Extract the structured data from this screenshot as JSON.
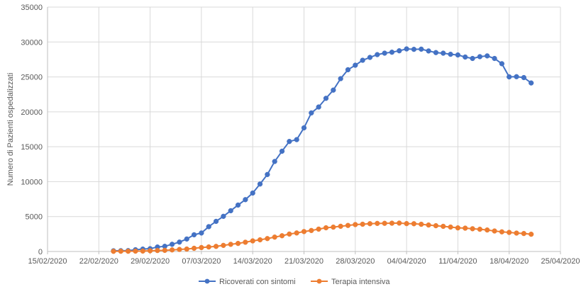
{
  "chart_data": {
    "type": "line",
    "title": "",
    "xlabel": "",
    "ylabel": "Numero di Pazienti ospedalizzati",
    "ylim": [
      0,
      35000
    ],
    "yticks": [
      0,
      5000,
      10000,
      15000,
      20000,
      25000,
      30000,
      35000
    ],
    "ytick_labels": [
      "0",
      "5000",
      "10000",
      "15000",
      "20000",
      "25000",
      "30000",
      "35000"
    ],
    "xlim": [
      "2020-02-15",
      "2020-04-25"
    ],
    "xticks": [
      "2020-02-15",
      "2020-02-22",
      "2020-02-29",
      "2020-03-07",
      "2020-03-14",
      "2020-03-21",
      "2020-03-28",
      "2020-04-04",
      "2020-04-11",
      "2020-04-18",
      "2020-04-25"
    ],
    "xtick_labels": [
      "15/02/2020",
      "22/02/2020",
      "29/02/2020",
      "07/03/2020",
      "14/03/2020",
      "21/03/2020",
      "28/03/2020",
      "04/04/2020",
      "11/04/2020",
      "18/04/2020",
      "25/04/2020"
    ],
    "grid": true,
    "legend_position": "bottom",
    "x": [
      "2020-02-24",
      "2020-02-25",
      "2020-02-26",
      "2020-02-27",
      "2020-02-28",
      "2020-02-29",
      "2020-03-01",
      "2020-03-02",
      "2020-03-03",
      "2020-03-04",
      "2020-03-05",
      "2020-03-06",
      "2020-03-07",
      "2020-03-08",
      "2020-03-09",
      "2020-03-10",
      "2020-03-11",
      "2020-03-12",
      "2020-03-13",
      "2020-03-14",
      "2020-03-15",
      "2020-03-16",
      "2020-03-17",
      "2020-03-18",
      "2020-03-19",
      "2020-03-20",
      "2020-03-21",
      "2020-03-22",
      "2020-03-23",
      "2020-03-24",
      "2020-03-25",
      "2020-03-26",
      "2020-03-27",
      "2020-03-28",
      "2020-03-29",
      "2020-03-30",
      "2020-03-31",
      "2020-04-01",
      "2020-04-02",
      "2020-04-03",
      "2020-04-04",
      "2020-04-05",
      "2020-04-06",
      "2020-04-07",
      "2020-04-08",
      "2020-04-09",
      "2020-04-10",
      "2020-04-11",
      "2020-04-12",
      "2020-04-13",
      "2020-04-14",
      "2020-04-15",
      "2020-04-16",
      "2020-04-17",
      "2020-04-18",
      "2020-04-19",
      "2020-04-20",
      "2020-04-21"
    ],
    "series": [
      {
        "name": "Ricoverati con sintomi",
        "color": "#4472C4",
        "values": [
          101,
          114,
          128,
          248,
          345,
          401,
          639,
          742,
          1034,
          1346,
          1790,
          2394,
          2651,
          3557,
          4316,
          5038,
          5838,
          6650,
          7426,
          8372,
          9663,
          11025,
          12894,
          14363,
          15757,
          16020,
          17708,
          19846,
          20692,
          21937,
          23112,
          24753,
          26029,
          26676,
          27386,
          27795,
          28192,
          28403,
          28540,
          28741,
          29010,
          28949,
          28976,
          28718,
          28485,
          28399,
          28242,
          28144,
          27847,
          27643,
          27899,
          28011,
          27643,
          26893,
          25007,
          25033,
          24906,
          24134
        ]
      },
      {
        "name": "Terapia intensiva",
        "color": "#ED7D31",
        "values": [
          26,
          35,
          36,
          56,
          64,
          105,
          140,
          166,
          229,
          295,
          351,
          462,
          567,
          650,
          733,
          877,
          1028,
          1153,
          1328,
          1518,
          1672,
          1851,
          2060,
          2257,
          2498,
          2655,
          2857,
          3009,
          3204,
          3396,
          3489,
          3612,
          3732,
          3856,
          3906,
          3981,
          4023,
          4035,
          4053,
          4068,
          3994,
          3977,
          3898,
          3792,
          3693,
          3605,
          3497,
          3381,
          3343,
          3260,
          3186,
          3079,
          2936,
          2812,
          2733,
          2635,
          2573,
          2471
        ]
      }
    ]
  }
}
